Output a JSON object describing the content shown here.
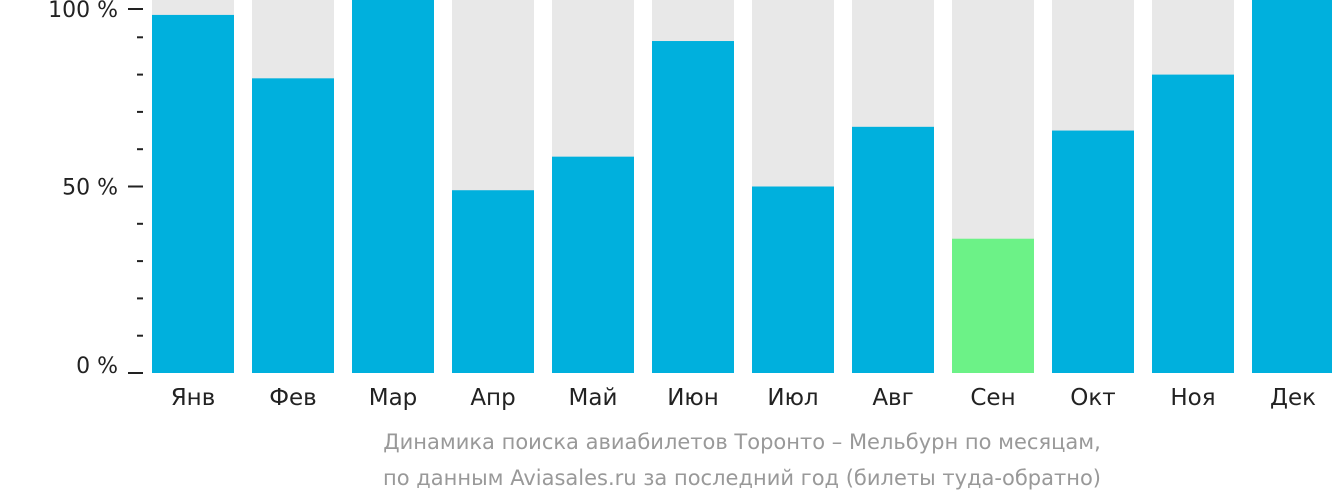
{
  "chart_data": {
    "type": "bar",
    "categories": [
      "Янв",
      "Фев",
      "Мар",
      "Апр",
      "Май",
      "Июн",
      "Июл",
      "Авг",
      "Сен",
      "Окт",
      "Ноя",
      "Дек"
    ],
    "values": [
      96,
      79,
      100,
      49,
      58,
      89,
      50,
      66,
      36,
      65,
      80,
      100
    ],
    "highlight_index": 8,
    "ylim": [
      0,
      100
    ],
    "yticks": [
      "0 %",
      "50 %",
      "100 %"
    ],
    "colors": {
      "bar": "#00b0dd",
      "highlight": "#6cf287",
      "track": "#e8e8e8",
      "axis": "#222222",
      "caption": "#999999"
    },
    "caption_line1": "Динамика поиска авиабилетов Торонто – Мельбурн по месяцам,",
    "caption_line2": "по данным Aviasales.ru за последний год (билеты туда-обратно)"
  }
}
